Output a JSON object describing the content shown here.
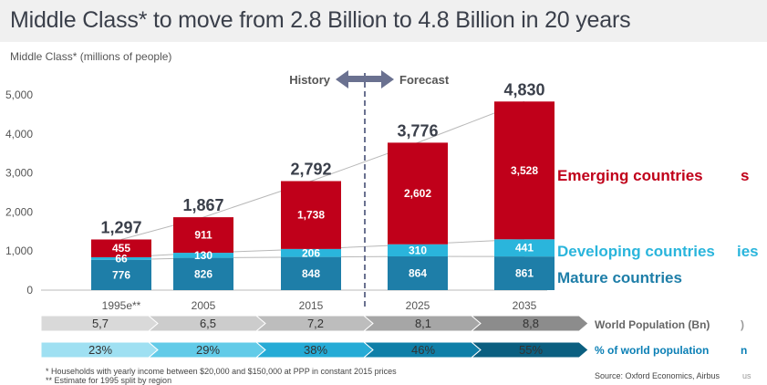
{
  "header": {
    "title": "Middle Class* to move from 2.8 Billion to 4.8 Billion in 20 years",
    "subtitle": "Middle Class* (millions of  people)"
  },
  "phases": {
    "history": "History",
    "forecast": "Forecast"
  },
  "colors": {
    "mature": "#1e7ea8",
    "developing": "#2ab5dc",
    "emerging": "#c0001a",
    "grey_band_text": "#555555"
  },
  "chart_data": {
    "type": "bar",
    "stacked": true,
    "categories": [
      "1995e**",
      "2005",
      "2015",
      "2025",
      "2035"
    ],
    "series": [
      {
        "name": "Mature countries",
        "values": [
          776,
          826,
          848,
          864,
          861
        ]
      },
      {
        "name": "Developing countries",
        "values": [
          66,
          130,
          206,
          310,
          441
        ]
      },
      {
        "name": "Emerging countries",
        "values": [
          455,
          911,
          1738,
          2602,
          3528
        ]
      }
    ],
    "totals": [
      "1,297",
      "1,867",
      "2,792",
      "3,776",
      "4,830"
    ],
    "value_labels": {
      "mature": [
        "776",
        "826",
        "848",
        "864",
        "861"
      ],
      "developing": [
        "66",
        "130",
        "206",
        "310",
        "441"
      ],
      "emerging": [
        "455",
        "911",
        "1,738",
        "2,602",
        "3,528"
      ]
    },
    "ylim": [
      0,
      5000
    ],
    "yticks": [
      0,
      1000,
      2000,
      3000,
      4000,
      5000
    ],
    "ytick_labels": [
      "0",
      "1,000",
      "2,000",
      "3,000",
      "4,000",
      "5,000"
    ],
    "ylabel": "Middle Class* (millions of  people)",
    "xlabel": ""
  },
  "series_labels": {
    "emerging": "Emerging countries",
    "developing": "Developing countries",
    "mature": "Mature countries",
    "emerging_tail": "s",
    "developing_tail": "ies"
  },
  "world_population": {
    "label": "World Population (Bn)",
    "tail": ")",
    "values": [
      "5,7",
      "6,5",
      "7,2",
      "8,1",
      "8,8"
    ]
  },
  "world_share": {
    "label": "% of world population",
    "tail": "n",
    "values": [
      "23%",
      "29%",
      "38%",
      "46%",
      "55%"
    ]
  },
  "footnotes": {
    "note1": "* Households with yearly income between $20,000 and $150,000 at PPP in constant 2015 prices",
    "note2": "** Estimate for 1995 split by region",
    "source": "Source: Oxford Economics, Airbus",
    "source_tail": "us"
  }
}
